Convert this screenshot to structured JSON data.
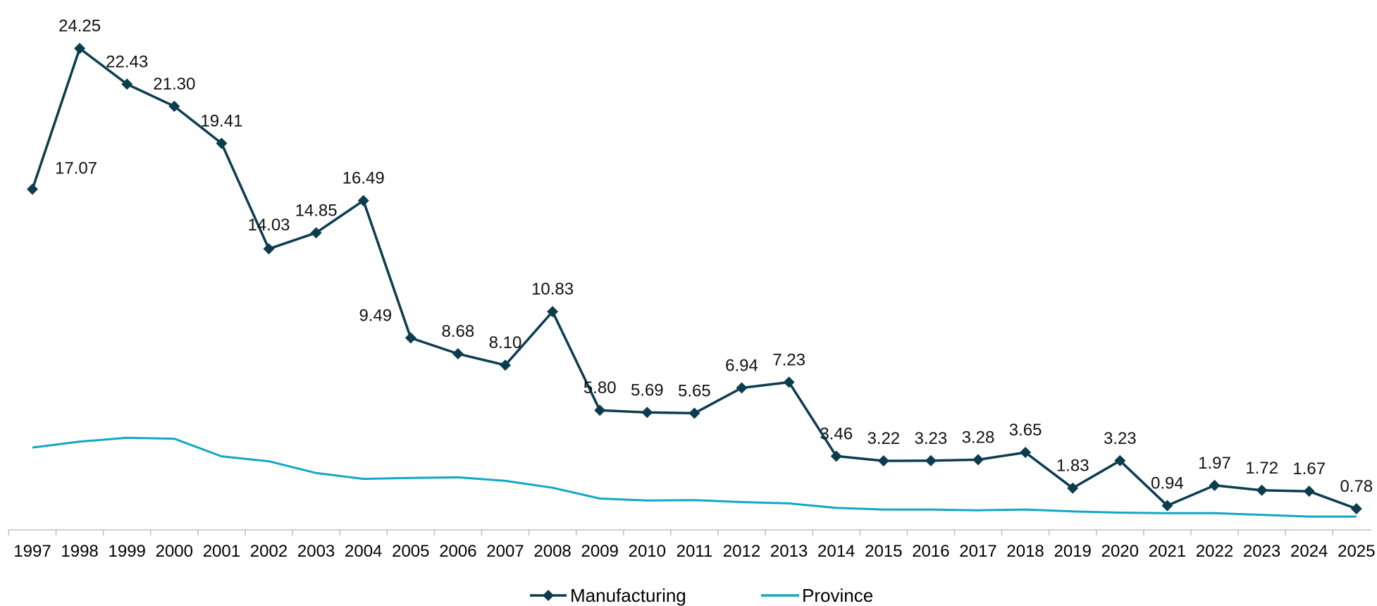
{
  "chart_data": {
    "type": "line",
    "x": [
      "1997",
      "1998",
      "1999",
      "2000",
      "2001",
      "2002",
      "2003",
      "2004",
      "2005",
      "2006",
      "2007",
      "2008",
      "2009",
      "2010",
      "2011",
      "2012",
      "2013",
      "2014",
      "2015",
      "2016",
      "2017",
      "2018",
      "2019",
      "2020",
      "2021",
      "2022",
      "2023",
      "2024",
      "2025"
    ],
    "series": [
      {
        "name": "Manufacturing",
        "color": "#0b3d4f",
        "marker": "diamond",
        "values": [
          17.07,
          24.25,
          22.43,
          21.3,
          19.41,
          14.03,
          14.85,
          16.49,
          9.49,
          8.68,
          8.1,
          10.83,
          5.8,
          5.69,
          5.65,
          6.94,
          7.23,
          3.46,
          3.22,
          3.23,
          3.28,
          3.65,
          1.83,
          3.23,
          0.94,
          1.97,
          1.72,
          1.67,
          0.78
        ],
        "labels": [
          "17.07",
          "24.25",
          "22.43",
          "21.30",
          "19.41",
          "14.03",
          "14.85",
          "16.49",
          "9.49",
          "8.68",
          "8.10",
          "10.83",
          "5.80",
          "5.69",
          "5.65",
          "6.94",
          "7.23",
          "3.46",
          "3.22",
          "3.23",
          "3.28",
          "3.65",
          "1.83",
          "3.23",
          "0.94",
          "1.97",
          "1.72",
          "1.67",
          "0.78"
        ]
      },
      {
        "name": "Province",
        "color": "#12a7c6",
        "marker": "none",
        "values": [
          3.9,
          4.2,
          4.4,
          4.35,
          3.45,
          3.2,
          2.6,
          2.3,
          2.35,
          2.38,
          2.2,
          1.85,
          1.3,
          1.2,
          1.22,
          1.12,
          1.05,
          0.82,
          0.74,
          0.74,
          0.7,
          0.74,
          0.64,
          0.58,
          0.55,
          0.55,
          0.47,
          0.38,
          0.38
        ]
      }
    ],
    "ylim": [
      -0.3,
      26
    ],
    "grid": false,
    "legend_position": "bottom"
  }
}
